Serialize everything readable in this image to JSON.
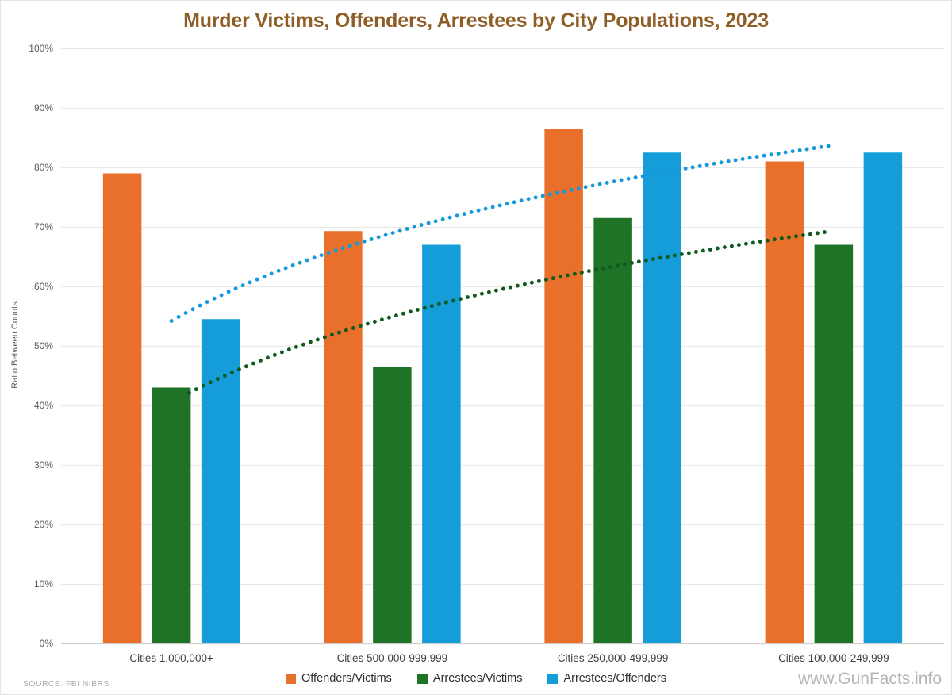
{
  "chart_data": {
    "type": "bar",
    "title": "Murder Victims, Offenders, Arrestees by City Populations, 2023",
    "ylabel": "Ratio Between Counts",
    "ylim": [
      0,
      100
    ],
    "ytick_step": 10,
    "yticks": [
      "0%",
      "10%",
      "20%",
      "30%",
      "40%",
      "50%",
      "60%",
      "70%",
      "80%",
      "90%",
      "100%"
    ],
    "grid": "horizontal",
    "legend_position": "bottom-center",
    "categories": [
      "Cities 1,000,000+",
      "Cities 500,000-999,999",
      "Cities 250,000-499,999",
      "Cities 100,000-249,999"
    ],
    "series": [
      {
        "name": "Offenders/Victims",
        "color": "#E8702A",
        "values": [
          79,
          69.3,
          86.5,
          81
        ]
      },
      {
        "name": "Arrestees/Victims",
        "color": "#1E7326",
        "values": [
          43,
          46.5,
          71.5,
          67
        ]
      },
      {
        "name": "Arrestees/Offenders",
        "color": "#149DD9",
        "values": [
          54.5,
          67,
          82.5,
          82.5
        ]
      }
    ],
    "trendlines": [
      {
        "series": "Arrestees/Offenders",
        "type": "logarithmic",
        "style": "dotted",
        "color": "#1599DB",
        "a": 54.2,
        "b": 21.3,
        "x_start": 1.0,
        "x_end": 3.99,
        "start_pct": 54.2,
        "end_pct": 83.6
      },
      {
        "series": "Arrestees/Victims",
        "type": "logarithmic",
        "style": "dotted",
        "color": "#0E5A1D",
        "a": 40.5,
        "b": 20.8,
        "x_start": 1.08,
        "x_end": 3.98,
        "start_pct": 42.1,
        "end_pct": 69.2
      }
    ],
    "source": "SOURCE: FBI NIBRS",
    "watermark": "www.GunFacts.info",
    "title_color": "#8F5D26",
    "gridline_color": "#E9E9E9",
    "axis_line_color": "#CFCFCF"
  }
}
